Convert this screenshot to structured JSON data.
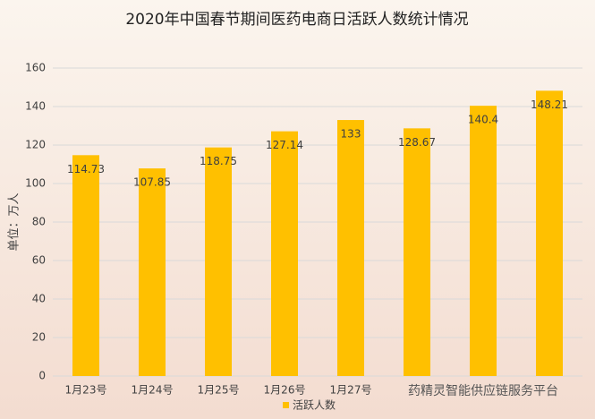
{
  "chart_data": {
    "type": "bar",
    "title": "2020年中国春节期间医药电商日活跃人数统计情况",
    "y_label": "单位：万人",
    "categories": [
      "1月23号",
      "1月24号",
      "1月25号",
      "1月26号",
      "1月27号",
      null,
      null,
      null
    ],
    "series": [
      {
        "name": "活跃人数",
        "color": "#ffc000",
        "values": [
          114.73,
          107.85,
          118.75,
          127.14,
          133,
          128.67,
          140.4,
          148.21
        ]
      }
    ],
    "ylim": [
      0,
      160
    ],
    "yticks": [
      0,
      20,
      40,
      60,
      80,
      100,
      120,
      140,
      160
    ],
    "grid": true,
    "legend": "bottom",
    "watermark": "药精灵智能供应链服务平台"
  }
}
